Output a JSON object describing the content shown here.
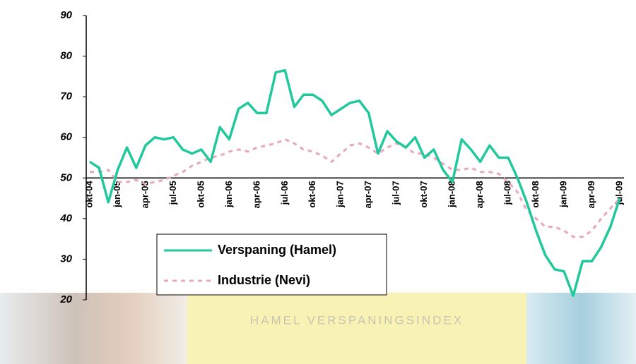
{
  "chart_data": {
    "type": "line",
    "banner": "HAMEL VERSPANINGSINDEX",
    "categories": [
      "okt-04",
      null,
      null,
      "jan-05",
      null,
      null,
      "apr-05",
      null,
      null,
      "jul-05",
      null,
      null,
      "okt-05",
      null,
      null,
      "jan-06",
      null,
      null,
      "apr-06",
      null,
      null,
      "jul-06",
      null,
      null,
      "okt-06",
      null,
      null,
      "jan-07",
      null,
      null,
      "apr-07",
      null,
      null,
      "jul-07",
      null,
      null,
      "okt-07",
      null,
      null,
      "jan-08",
      null,
      null,
      "apr-08",
      null,
      null,
      "jul-08",
      null,
      null,
      "okt-08",
      null,
      null,
      "jan-09",
      null,
      null,
      "apr-09",
      null,
      null,
      "jul-09"
    ],
    "series": [
      {
        "name": "Verspaning (Hamel)",
        "color": "#20c89c",
        "dash": false,
        "values": [
          54,
          52.5,
          44,
          52,
          57.5,
          52.5,
          58,
          60,
          59.5,
          60,
          57,
          56,
          57,
          54,
          62.5,
          59.5,
          67,
          68.5,
          66,
          66,
          76,
          76.5,
          67.5,
          70.5,
          70.5,
          69,
          65.5,
          67,
          68.5,
          69,
          66,
          56,
          61.5,
          59,
          57.5,
          60,
          55,
          57,
          52,
          49,
          59.5,
          57,
          54,
          58,
          55,
          55,
          50,
          44,
          37,
          31,
          27.5,
          27,
          21,
          29.5,
          29.5,
          33,
          38,
          45
        ]
      },
      {
        "name": "Industrie (Nevi)",
        "color": "#e8a8bc",
        "dash": true,
        "values": [
          51.5,
          51.5,
          52,
          49,
          49,
          49.5,
          48.5,
          49,
          49.5,
          50.5,
          51.5,
          53,
          54,
          55,
          55.5,
          56.5,
          57,
          56.5,
          57.5,
          58,
          58.5,
          59.5,
          58.5,
          57,
          56.5,
          55.5,
          54,
          56,
          58,
          58.5,
          57.5,
          56,
          57.5,
          58.5,
          57.5,
          56,
          56,
          55,
          53.5,
          52,
          52,
          52.5,
          51.5,
          51.5,
          51,
          49,
          46.5,
          42,
          40,
          38,
          38,
          37,
          35.5,
          35.5,
          37,
          40,
          42.5,
          45
        ]
      }
    ],
    "ylim": [
      20,
      90
    ],
    "yticks": [
      20,
      30,
      40,
      50,
      60,
      70,
      80,
      90
    ],
    "x_axis_at": 50
  }
}
